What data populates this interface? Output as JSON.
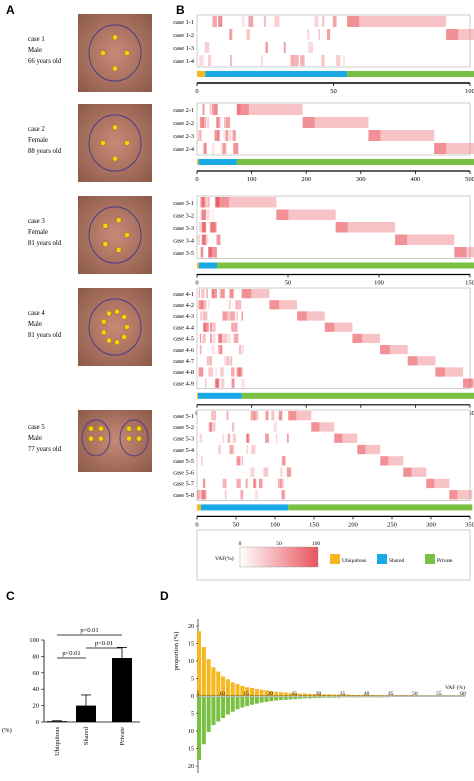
{
  "panel_letters": {
    "a": "A",
    "b": "B",
    "c": "C",
    "d": "D"
  },
  "cases": [
    {
      "label": [
        "case 1",
        "Male",
        "66 years old"
      ],
      "lesions": 4,
      "max": 100,
      "ticks": [
        0,
        50,
        100
      ],
      "rows": [
        "case 1-1",
        "case 1-2",
        "case 1-3",
        "case 1-4"
      ],
      "bar": {
        "ubiquitous": 3,
        "shared": 52,
        "private": 145
      }
    },
    {
      "label": [
        "case 2",
        "Female",
        "88 years old"
      ],
      "lesions": 4,
      "max": 500,
      "ticks": [
        0,
        100,
        200,
        300,
        400,
        500
      ],
      "rows": [
        "case 2-1",
        "case 2-2",
        "case 2-3",
        "case 2-4"
      ],
      "bar": {
        "ubiquitous": 3,
        "shared": 70,
        "private": 482
      }
    },
    {
      "label": [
        "case 3",
        "Female",
        "81 years old"
      ],
      "lesions": 5,
      "max": 150,
      "ticks": [
        0,
        50,
        100,
        150
      ],
      "rows": [
        "case 3-1",
        "case 3-2",
        "case 3-3",
        "case 3-4",
        "case 3-5"
      ],
      "bar": {
        "ubiquitous": 1,
        "shared": 10,
        "private": 163
      }
    },
    {
      "label": [
        "case 4",
        "Male",
        "81 years old"
      ],
      "lesions": 9,
      "max": 250,
      "ticks": [
        0,
        50,
        100,
        150,
        200,
        250
      ],
      "rows": [
        "case 4-1",
        "case 4-2",
        "case 4-3",
        "case 4-4",
        "case 4-5",
        "case 4-6",
        "case 4-7",
        "case 4-8",
        "case 4-9"
      ],
      "bar": {
        "ubiquitous": 1,
        "shared": 40,
        "private": 228
      }
    },
    {
      "label": [
        "case 5",
        "Male",
        "77 years old"
      ],
      "lesions": 8,
      "max": 350,
      "ticks": [
        0,
        50,
        100,
        150,
        200,
        250,
        300,
        350
      ],
      "rows": [
        "case 5-1",
        "case 5-2",
        "case 5-3",
        "case 5-4",
        "case 5-5",
        "case 5-6",
        "case 5-7",
        "case 5-8"
      ],
      "bar": {
        "ubiquitous": 5,
        "shared": 112,
        "private": 236
      }
    }
  ],
  "legend": {
    "vaf_label": "VAF(%)",
    "scale_ticks": [
      "0",
      "50",
      "100"
    ],
    "categories": [
      "Ubiquitous",
      "Shared",
      "Private"
    ]
  },
  "colors": {
    "ubiquitous": "#f5b820",
    "shared": "#19a9e6",
    "private": "#79c043",
    "heat": "#e8545c",
    "bar_c": "#000000"
  },
  "chart_data": [
    {
      "type": "bar",
      "panel": "C",
      "categories": [
        "Ubiquitous",
        "Shared",
        "Private"
      ],
      "values": [
        1,
        20,
        78
      ],
      "errors": [
        0.5,
        13,
        13
      ],
      "ylabel": "(%)",
      "ylim": [
        0,
        100
      ],
      "yticks": [
        0,
        20,
        40,
        60,
        80,
        100
      ],
      "significance": [
        {
          "pair": [
            "Ubiquitous",
            "Shared"
          ],
          "label": "p<0.01"
        },
        {
          "pair": [
            "Shared",
            "Private"
          ],
          "label": "p<0.01"
        },
        {
          "pair": [
            "Ubiquitous",
            "Private"
          ],
          "label": "p<0.01"
        }
      ]
    },
    {
      "type": "bar",
      "panel": "D",
      "xlabel": "VAF (%)",
      "ylabel": "proportion (%)",
      "xticks": [
        5,
        10,
        15,
        20,
        25,
        30,
        35,
        40,
        45,
        50,
        55,
        60
      ],
      "yticks": [
        0,
        5,
        10,
        15,
        20
      ],
      "ylim": [
        0,
        20
      ],
      "x": [
        5,
        6,
        7,
        8,
        9,
        10,
        11,
        12,
        13,
        14,
        15,
        16,
        17,
        18,
        19,
        20,
        21,
        22,
        23,
        24,
        25,
        26,
        27,
        28,
        29,
        30,
        31,
        32,
        33,
        34,
        35,
        36,
        37,
        38,
        39,
        40,
        41,
        42,
        43,
        44,
        45,
        46,
        47,
        48,
        49,
        50,
        51,
        52,
        53,
        54,
        55,
        56,
        57,
        58,
        59,
        60
      ],
      "series": [
        {
          "color": "#f5b820",
          "direction": "up",
          "values": [
            18.5,
            14,
            10.5,
            8.2,
            7,
            5.6,
            4.8,
            3.9,
            3.4,
            2.9,
            2.5,
            2.3,
            2,
            1.8,
            1.6,
            1.4,
            1.2,
            1.1,
            1,
            0.9,
            0.8,
            0.7,
            0.7,
            0.6,
            0.6,
            0.5,
            0.5,
            0.5,
            0.4,
            0.4,
            0.4,
            0.4,
            0.3,
            0.3,
            0.3,
            0.3,
            0.3,
            0.2,
            0.2,
            0.2,
            0.2,
            0.2,
            0.2,
            0.2,
            0.2,
            0.1,
            0.1,
            0.1,
            0.1,
            0.1,
            0.1,
            0.1,
            0.1,
            0.1,
            0.1,
            0.1
          ]
        },
        {
          "color": "#79c043",
          "direction": "down",
          "values": [
            18,
            13.5,
            10,
            8,
            7,
            6,
            5,
            4.2,
            3.5,
            3,
            2.6,
            2.2,
            1.9,
            1.6,
            1.4,
            1.2,
            1,
            0.9,
            0.8,
            0.7,
            0.6,
            0.5,
            0.4,
            0.4,
            0.3,
            0.3,
            0.2,
            0.2,
            0.2,
            0.2,
            0.1,
            0.1,
            0.1,
            0.1,
            0.1,
            0.1,
            0.1,
            0.1,
            0.1,
            0.1,
            0,
            0,
            0,
            0,
            0,
            0,
            0,
            0,
            0,
            0,
            0,
            0,
            0,
            0,
            0,
            0
          ]
        }
      ]
    }
  ]
}
